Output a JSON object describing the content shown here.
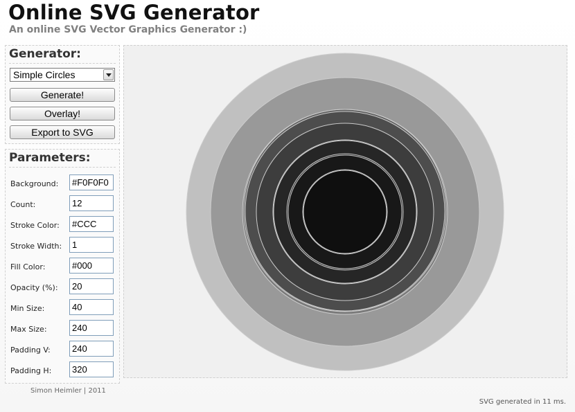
{
  "header": {
    "title": "Online SVG Generator",
    "subtitle": "An online SVG Vector Graphics Generator :)"
  },
  "generator": {
    "heading": "Generator:",
    "selected_type": "Simple Circles",
    "generate_label": "Generate!",
    "overlay_label": "Overlay!",
    "export_label": "Export to SVG"
  },
  "parameters": {
    "heading": "Parameters:",
    "fields": [
      {
        "label": "Background:",
        "value": "#F0F0F0"
      },
      {
        "label": "Count:",
        "value": "12"
      },
      {
        "label": "Stroke Color:",
        "value": "#CCC"
      },
      {
        "label": "Stroke Width:",
        "value": "1"
      },
      {
        "label": "Fill Color:",
        "value": "#000"
      },
      {
        "label": "Opacity (%):",
        "value": "20"
      },
      {
        "label": "Min Size:",
        "value": "40"
      },
      {
        "label": "Max Size:",
        "value": "240"
      },
      {
        "label": "Padding V:",
        "value": "240"
      },
      {
        "label": "Padding H:",
        "value": "320"
      }
    ]
  },
  "canvas": {
    "background": "#F0F0F0",
    "stroke_color": "#CCCCCC",
    "fill_color": "#000000"
  },
  "footer": {
    "credit": "Simon Heimler | 2011",
    "status": "SVG generated in 11 ms."
  }
}
